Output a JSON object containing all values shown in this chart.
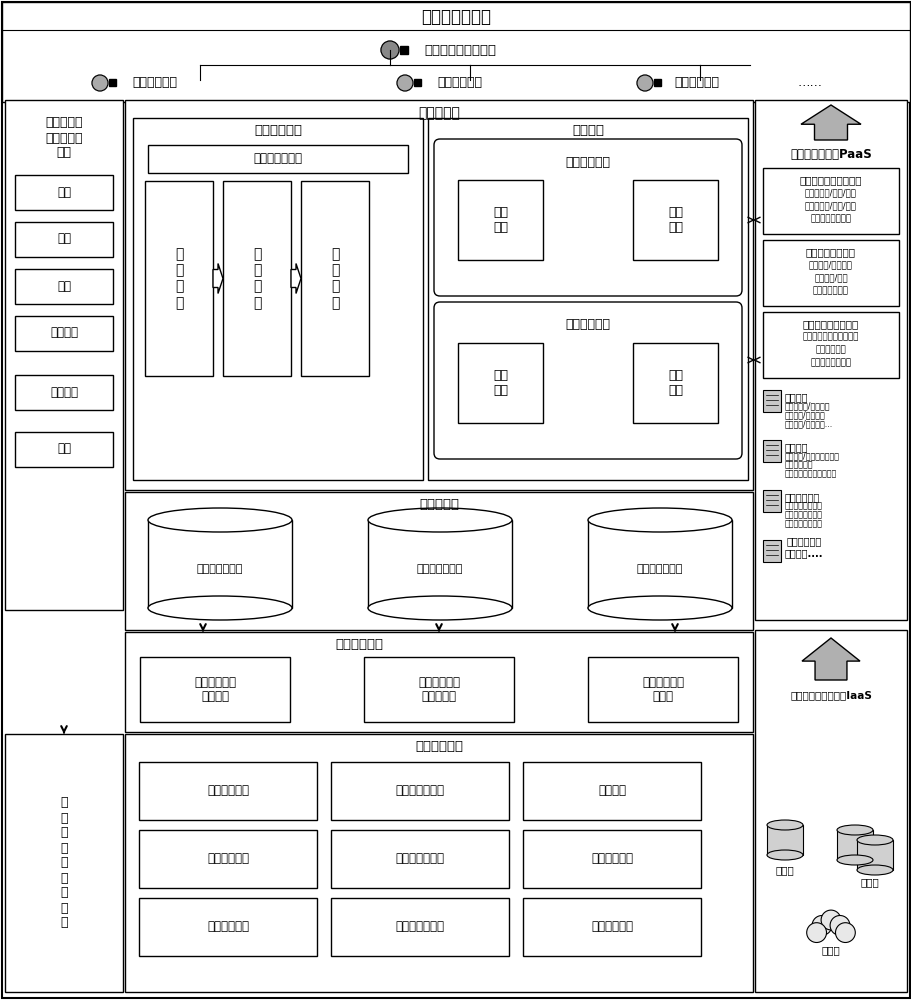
{
  "title_top": "工矿行业用户层",
  "portal_label": "安全云服务平台门户",
  "platform1": "政府监察平台",
  "platform2": "企业应用系统",
  "platform3": "行业监管平台",
  "platform3_extra": "……",
  "left_panel_title": "系统管理与\n相关工具集\n研制",
  "left_boxes": [
    "开发",
    "部署",
    "监控",
    "安全管理",
    "日志管理",
    "配置"
  ],
  "app_layer_title": "应用服务层",
  "big_data_title": "海量数据处理",
  "std_service": "标准化服务接口",
  "data_box1": "数\n据\n采\n集",
  "data_box2": "数\n据\n整\n合",
  "data_box3": "数\n据\n管\n理",
  "biz_collab_title": "业务协同",
  "task_model_title": "协作任务建模",
  "biz_collect": "业务\n采集",
  "svc_integrate": "服务\n整合",
  "cross_task_title": "跨域任务协同",
  "biz_manage": "业务\n管理",
  "biz_monitor": "业务\n监控",
  "virtual_layer_title": "虚拟资源层",
  "cyl1": "知识服务资源池",
  "cyl2": "生产服务资源池",
  "cyl3": "数据信息资源池",
  "access_layer_title": "接入与适配层",
  "access1": "其他数据资源\n适配接入",
  "access2": "安全服务资源\n云端化接入",
  "access3": "第三方服务适\n配接入",
  "safety_title": "安全服务资源",
  "s00": "生产设备数据",
  "s01": "标准化基本规范",
  "s02": "法律法规",
  "s10": "安全管理制度",
  "s11": "事故源历史数据",
  "s12": "教育培训知识",
  "s20": "安全生产投入",
  "s21": "组织机构与负责",
  "s22": "隐患检查信息",
  "left_bottom": "相\n关\n标\n准\n及\n验\n证\n测\n试",
  "paas_title": "平台服务支撑层PaaS",
  "paas1_title": "云服务管理与支撑引擎",
  "paas1_d1": "云服务注册/发布/注销",
  "paas1_d2": "云服务搜索/调度/组合",
  "paas1_d3": "云服务执行与监控",
  "paas2_title": "交易协同逻辑引擎",
  "paas2_d1": "交易逻辑/过程管理",
  "paas2_d2": "费用核算/结算",
  "paas2_d3": "信用评估与分析",
  "paas3_title": "知识聚集与分类引擎",
  "paas3_d1": "行业多领域分散知识获取",
  "paas3_d2": "行业知识建模",
  "paas3_d3": "行业知识聚集分类",
  "ops1_title": "运营管理",
  "ops1_d1": "多租户服务/订单管理",
  "ops1_d2": "交付管理/支付管理",
  "ops1_d3": "用户管理/积分管理...",
  "ops2_title": "运维管理",
  "ops2_d1": "安全管理/性能管理与优化",
  "ops2_d2": "系统配置管理",
  "ops2_d3": "海量数据容错与可信管理",
  "ops3_title": "终端软件开发",
  "ops3_d1": "传感信息融合管理",
  "ops3_d2": "服务资源层形界面",
  "ops3_d3": "普适人机交互工具",
  "ops4_title": "平台开发工具\n软件市场....",
  "iaas_title": "基础设施服务支撑层IaaS",
  "iaas1": "云计算",
  "iaas2": "云存储",
  "iaas3": "云网络"
}
